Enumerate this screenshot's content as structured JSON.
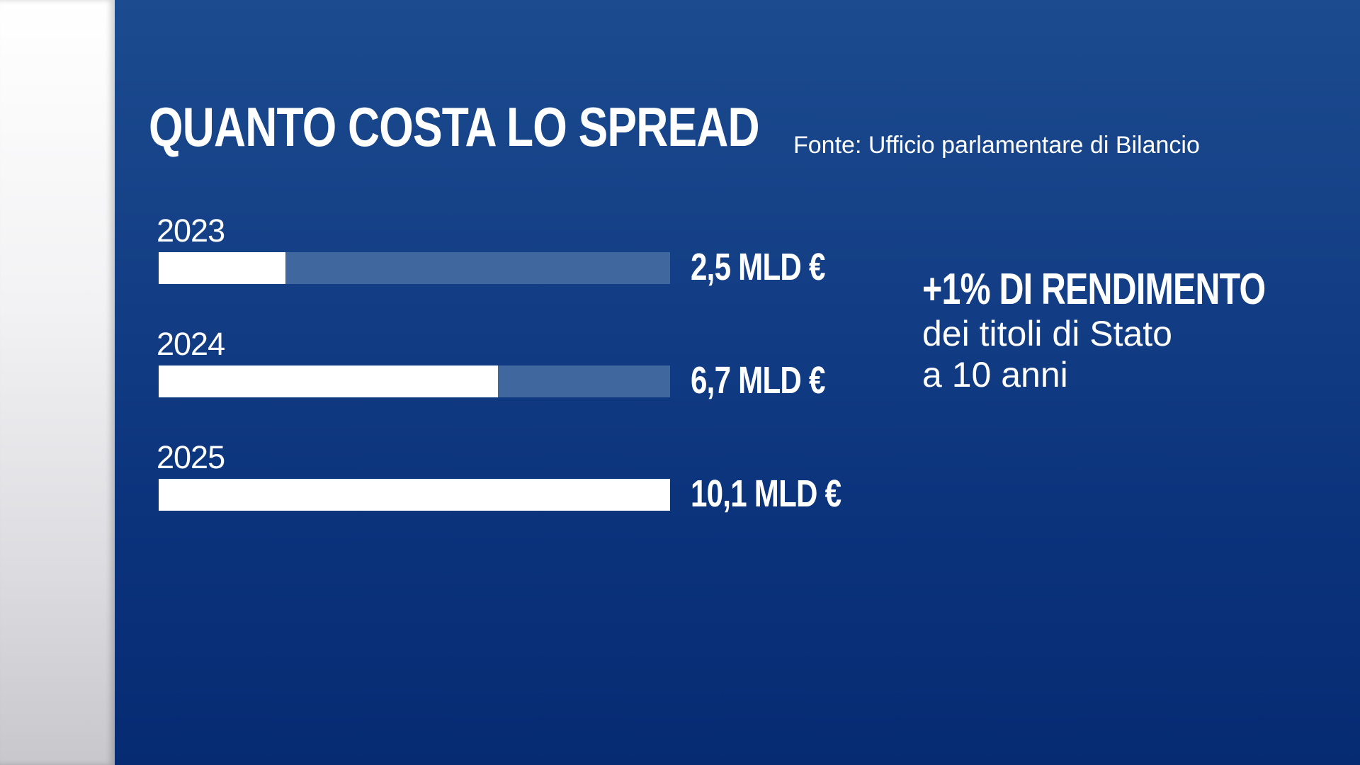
{
  "chart_data": {
    "type": "bar",
    "orientation": "horizontal",
    "title": "QUANTO COSTA LO SPREAD",
    "source": "Fonte: Ufficio parlamentare di Bilancio",
    "categories": [
      "2023",
      "2024",
      "2025"
    ],
    "values": [
      2.5,
      6.7,
      10.1
    ],
    "value_labels": [
      "2,5 MLD €",
      "6,7 MLD €",
      "10,1 MLD €"
    ],
    "unit": "MLD €",
    "xlim": [
      0,
      10.1
    ],
    "grid": false,
    "colors": {
      "bar": "#ffffff",
      "track": "#41679f",
      "background": "#0b347d",
      "text": "#ffffff"
    }
  },
  "note": {
    "headline": "+1% DI RENDIMENTO",
    "lines": [
      "dei titoli di Stato",
      "a 10 anni"
    ]
  }
}
